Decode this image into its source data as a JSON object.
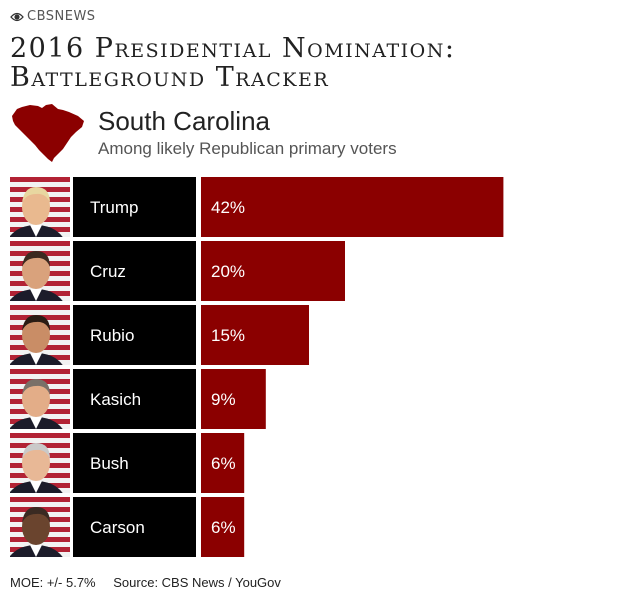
{
  "brand": {
    "name": "CBSNEWS",
    "logo": "cbs-eye-icon"
  },
  "header": {
    "title_line1": "2016 Presidential Nomination:",
    "title_line2": "Battleground Tracker",
    "state": "South Carolina",
    "subtitle": "Among likely Republican primary voters",
    "state_icon": "south-carolina-map-icon"
  },
  "colors": {
    "bar": "#8b0000",
    "name_box": "#000000",
    "bar_text": "#ffffff"
  },
  "chart_data": {
    "type": "bar",
    "orientation": "horizontal",
    "categories": [
      "Trump",
      "Cruz",
      "Rubio",
      "Kasich",
      "Bush",
      "Carson"
    ],
    "values": [
      42,
      20,
      15,
      9,
      6,
      6
    ],
    "labels": [
      "42%",
      "20%",
      "15%",
      "9%",
      "6%",
      "6%"
    ],
    "unit": "%",
    "xlim": [
      0,
      45
    ],
    "grid": false,
    "legend": "none"
  },
  "footer": {
    "moe": "MOE: +/- 5.7%",
    "source": "Source: CBS News / YouGov"
  }
}
